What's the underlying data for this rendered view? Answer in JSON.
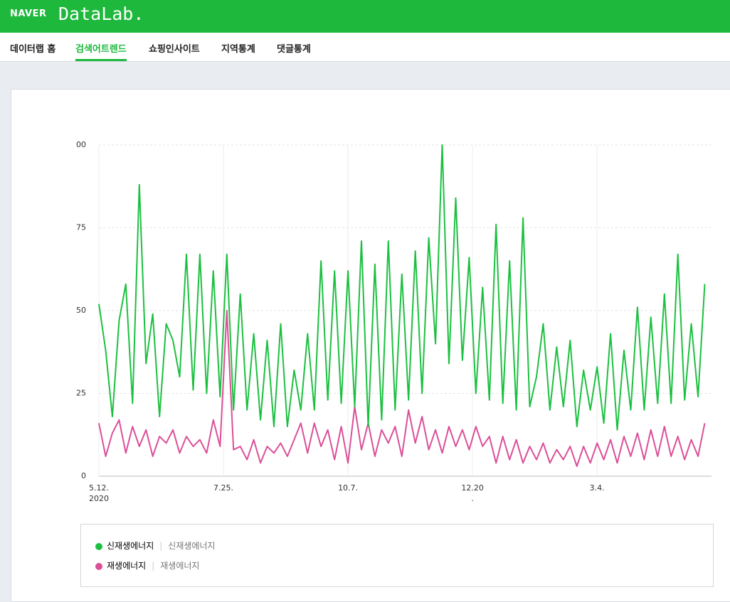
{
  "header": {
    "brand": "NAVER",
    "product": "DataLab."
  },
  "nav": {
    "items": [
      "데이터랩 홈",
      "검색어트렌드",
      "쇼핑인사이트",
      "지역통계",
      "댓글통계"
    ],
    "active": 1
  },
  "chart_data": {
    "type": "line",
    "x": [
      0,
      4,
      8,
      12,
      16,
      20,
      24,
      28,
      32,
      36,
      40,
      44,
      48,
      52,
      56,
      60,
      64,
      68,
      72,
      76,
      80,
      84,
      88,
      92,
      96,
      100,
      104,
      108,
      112,
      116,
      120,
      124,
      128,
      132,
      136,
      140,
      144,
      148,
      152,
      156,
      160,
      164,
      168,
      172,
      176,
      180,
      184,
      188,
      192,
      196,
      200,
      204,
      208,
      212,
      216,
      220,
      224,
      228,
      232,
      236,
      240,
      244,
      248,
      252,
      256,
      260,
      264,
      268,
      272,
      276,
      280,
      284,
      288,
      292,
      296,
      300,
      304,
      308,
      312,
      316,
      320,
      324,
      328,
      332,
      336,
      340,
      344,
      348,
      352,
      356,
      360
    ],
    "xlim": [
      0,
      364
    ],
    "xticks": [
      {
        "value": 0,
        "label": "5.12.",
        "sublabel": "2020"
      },
      {
        "value": 74,
        "label": "7.25."
      },
      {
        "value": 148,
        "label": "10.7."
      },
      {
        "value": 222,
        "label": "12.20",
        "sublabel": "."
      },
      {
        "value": 296,
        "label": "3.4."
      }
    ],
    "ylim": [
      0,
      100
    ],
    "yticks": [
      0,
      25,
      50,
      75,
      {
        "value": 100,
        "label": "00"
      }
    ],
    "grid": true,
    "series": [
      {
        "name": "신재생에너지",
        "keywords": "신재생에너지",
        "color": "#1cc040",
        "values": [
          52,
          38,
          18,
          47,
          58,
          22,
          88,
          34,
          49,
          18,
          46,
          41,
          30,
          67,
          26,
          67,
          25,
          62,
          24,
          67,
          20,
          55,
          20,
          43,
          17,
          41,
          15,
          46,
          15,
          32,
          20,
          43,
          20,
          65,
          23,
          62,
          22,
          62,
          21,
          71,
          15,
          64,
          17,
          71,
          20,
          61,
          23,
          68,
          25,
          72,
          40,
          100,
          34,
          84,
          35,
          66,
          25,
          57,
          23,
          76,
          22,
          65,
          20,
          78,
          21,
          30,
          46,
          20,
          39,
          21,
          41,
          15,
          32,
          20,
          33,
          16,
          43,
          14,
          38,
          20,
          51,
          20,
          48,
          22,
          55,
          22,
          67,
          23,
          46,
          24,
          58
        ]
      },
      {
        "name": "재생에너지",
        "keywords": "재생에너지",
        "color": "#db4f98",
        "values": [
          16,
          6,
          13,
          17,
          7,
          15,
          9,
          14,
          6,
          12,
          10,
          14,
          7,
          12,
          9,
          11,
          7,
          17,
          9,
          50,
          8,
          9,
          5,
          11,
          4,
          9,
          7,
          10,
          6,
          11,
          16,
          7,
          16,
          9,
          14,
          5,
          15,
          4,
          21,
          8,
          16,
          6,
          14,
          10,
          15,
          6,
          20,
          10,
          18,
          8,
          14,
          7,
          15,
          9,
          14,
          8,
          15,
          9,
          12,
          4,
          12,
          5,
          11,
          4,
          9,
          5,
          10,
          4,
          8,
          5,
          9,
          3,
          9,
          4,
          10,
          5,
          11,
          4,
          12,
          6,
          13,
          5,
          14,
          6,
          15,
          6,
          12,
          5,
          11,
          6,
          16
        ]
      }
    ]
  }
}
